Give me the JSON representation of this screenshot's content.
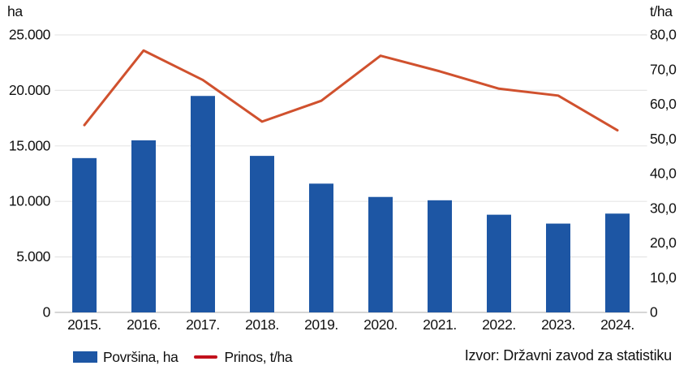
{
  "chart_data": {
    "type": "bar",
    "subtype": "combo-bar-line-dual-axis",
    "categories": [
      "2015.",
      "2016.",
      "2017.",
      "2018.",
      "2019.",
      "2020.",
      "2021.",
      "2022.",
      "2023.",
      "2024."
    ],
    "series": [
      {
        "name": "Površina, ha",
        "type": "bar",
        "axis": "left",
        "color": "#1d56a4",
        "values": [
          13900,
          15500,
          19500,
          14100,
          11600,
          10400,
          10100,
          8800,
          8000,
          8900
        ]
      },
      {
        "name": "Prinos, t/ha",
        "type": "line",
        "axis": "right",
        "color": "#d0512e",
        "values": [
          54.0,
          75.5,
          67.0,
          55.0,
          61.0,
          74.0,
          69.5,
          64.5,
          62.5,
          52.5
        ]
      }
    ],
    "left_axis": {
      "unit": "ha",
      "min": 0,
      "max": 25000,
      "tick_values": [
        0,
        5000,
        10000,
        15000,
        20000,
        25000
      ],
      "tick_labels": [
        "0",
        "5.000",
        "10.000",
        "15.000",
        "20.000",
        "25.000"
      ]
    },
    "right_axis": {
      "unit": "t/ha",
      "min": 0,
      "max": 80,
      "tick_values": [
        0,
        10,
        20,
        30,
        40,
        50,
        60,
        70,
        80
      ],
      "tick_labels": [
        "0",
        "10,0",
        "20,0",
        "30,0",
        "40,0",
        "50,0",
        "60,0",
        "70,0",
        "80,0"
      ]
    },
    "grid": "horizontal",
    "legend_position": "bottom-left"
  },
  "legend": {
    "items": [
      {
        "label": "Površina, ha",
        "swatch": "rect",
        "color": "#1d56a4"
      },
      {
        "label": "Prinos, t/ha",
        "swatch": "line",
        "color": "#c2111c"
      }
    ]
  },
  "source": {
    "text": "Izvor: Državni zavod za statistiku"
  },
  "colors": {
    "bar": "#1d56a4",
    "line": "#d0512e",
    "legend_line": "#c2111c",
    "grid": "#e6e6e6",
    "axis_line": "#c9c9c9",
    "text": "#111111",
    "background": "#ffffff"
  }
}
